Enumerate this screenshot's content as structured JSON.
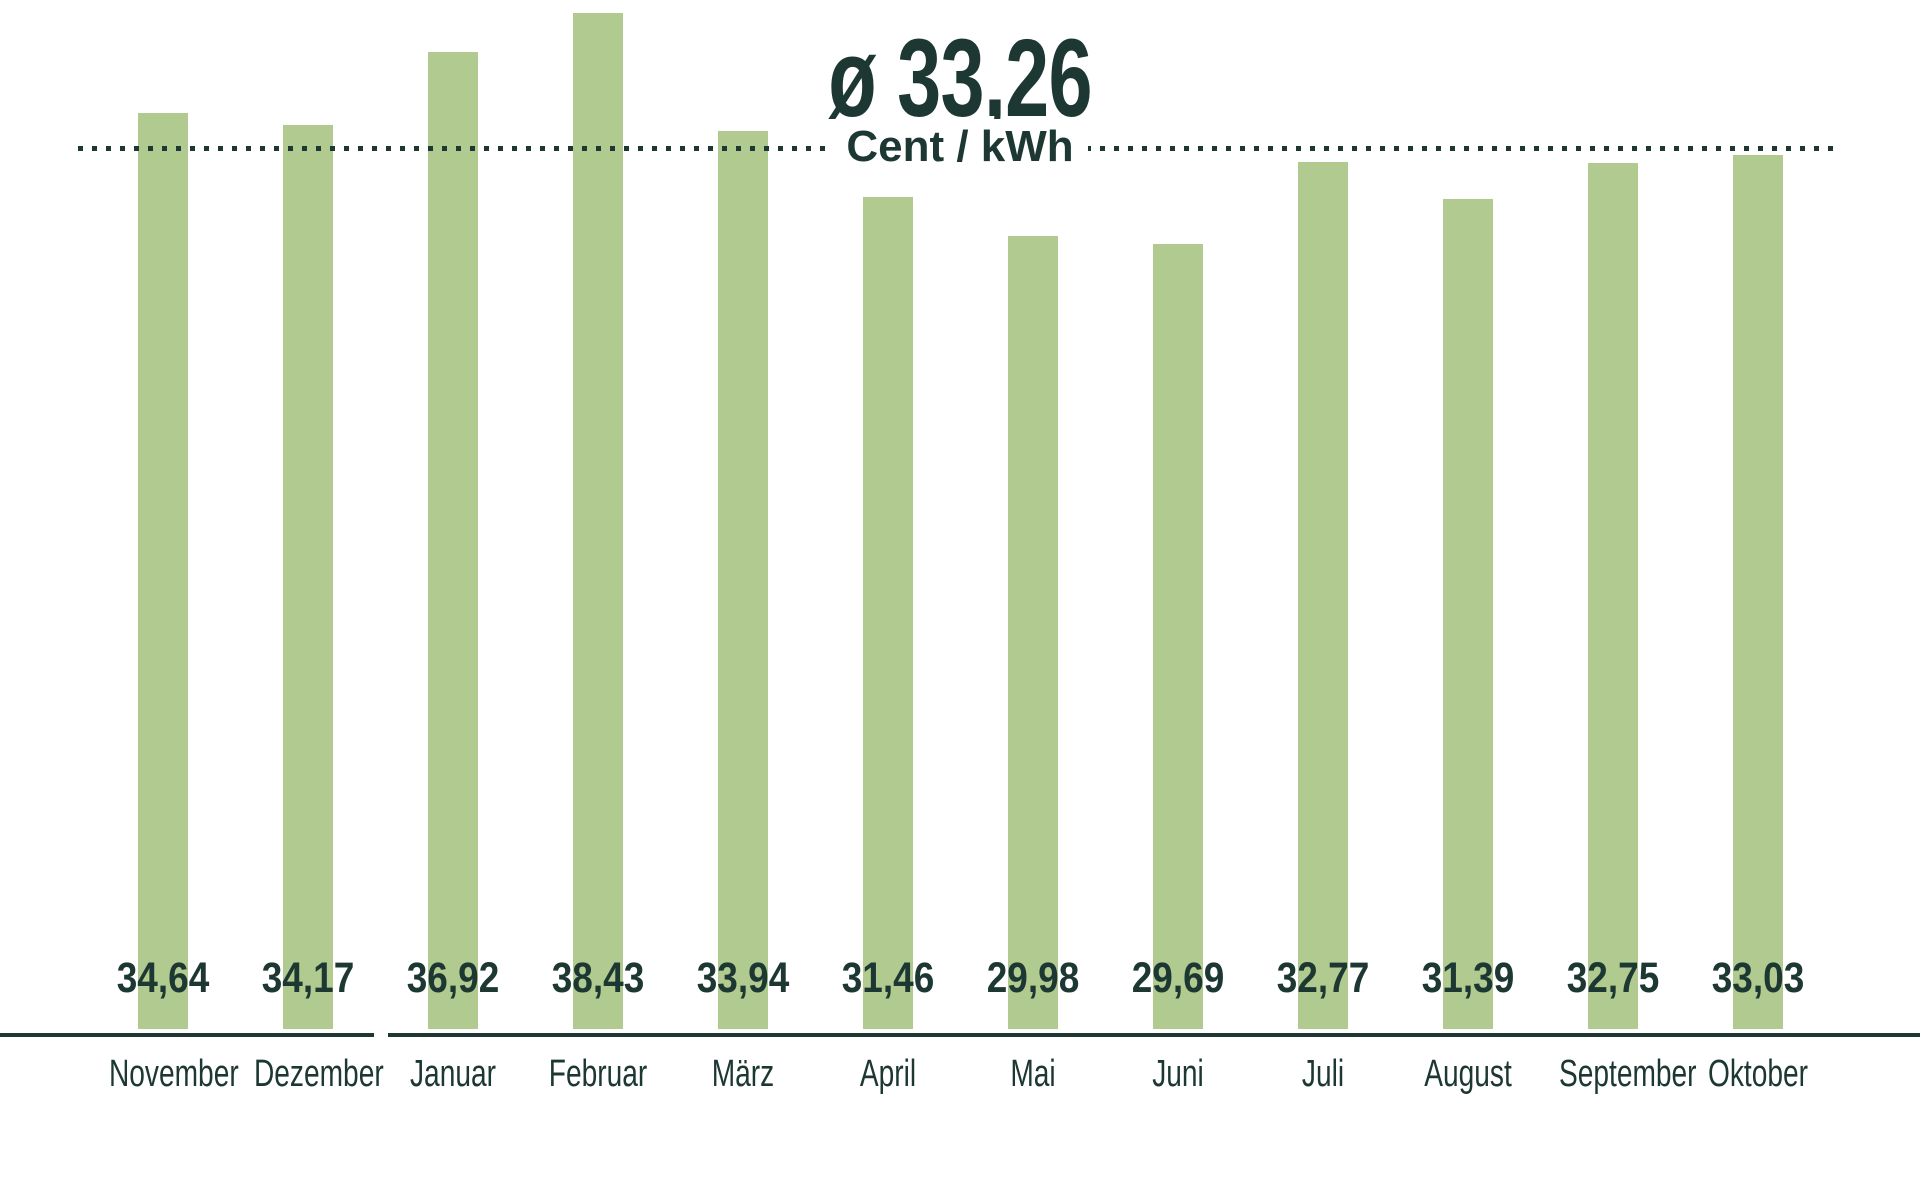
{
  "header": {
    "title": "ø 33,26",
    "subtitle": "Cent / kWh"
  },
  "colors": {
    "ink": "#1d3833",
    "bar": "#b1ca8f",
    "background": "#ffffff"
  },
  "chart_data": {
    "type": "bar",
    "title": "ø 33,26",
    "subtitle": "Cent / kWh",
    "unit": "Cent/kWh",
    "categories": [
      "November",
      "Dezember",
      "Januar",
      "Februar",
      "März",
      "April",
      "Mai",
      "Juni",
      "Juli",
      "August",
      "September",
      "Oktober"
    ],
    "values": [
      34.64,
      34.17,
      36.92,
      38.43,
      33.94,
      31.46,
      29.98,
      29.69,
      32.77,
      31.39,
      32.75,
      33.03
    ],
    "value_labels": [
      "34,64",
      "34,17",
      "36,92",
      "38,43",
      "33,94",
      "31,46",
      "29,98",
      "29,69",
      "32,77",
      "31,39",
      "32,75",
      "33,03"
    ],
    "average_value": 33.26,
    "average_line_style": "dotted",
    "xlabel": "",
    "ylabel": "Cent/kWh",
    "ylim": [
      0,
      39
    ],
    "grid": "off",
    "legend": "none",
    "axis_break_after_category": "Dezember"
  }
}
